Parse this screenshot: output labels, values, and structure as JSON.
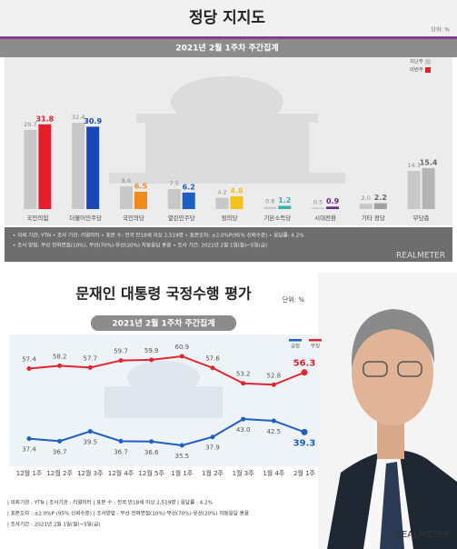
{
  "chart_data": [
    {
      "type": "bar",
      "title": "정당 지지도",
      "subtitle": "2021년 2월 1주차 주간집계",
      "unit": "단위: %",
      "categories": [
        "국민의힘",
        "더불어민주당",
        "국민의당",
        "열린민주당",
        "정의당",
        "기본소득당",
        "시대전환",
        "기타 정당",
        "무당층"
      ],
      "series": [
        {
          "name": "지난주",
          "color": "#c8c8c8",
          "values": [
            29.7,
            32.4,
            8.6,
            7.5,
            4.2,
            0.8,
            0.5,
            2.0,
            14.3
          ],
          "value_labels": [
            "29.7",
            "32.4",
            "8.6",
            "7.5",
            "4.2",
            "0.8",
            "0.5",
            "2.0",
            "14.3"
          ]
        },
        {
          "name": "이번주",
          "color": "#e61e2b",
          "colors": [
            "#e61e2b",
            "#1a47b8",
            "#f08a1c",
            "#1d5fbf",
            "#f3c21b",
            "#3ab0a8",
            "#6b2a8c",
            "#a0a0a0",
            "#b4b4b4"
          ],
          "values": [
            31.8,
            30.9,
            6.5,
            6.2,
            4.8,
            1.2,
            0.9,
            2.2,
            15.4
          ],
          "value_labels": [
            "31.8",
            "30.9",
            "6.5",
            "6.2",
            "4.8",
            "1.2",
            "0.9",
            "2.2",
            "15.4"
          ]
        }
      ],
      "notes": [
        "• 의뢰 기관: YTN • 조사 기관: 리얼미터 • 표본 수: 전국 만18세 이상 2,519명 • 표본오차: ±2.0%P(95% 신뢰수준) • 응답률: 4.2%",
        "• 조사 방법: 무선 전화면접(10%), 무선(70%)·유선(20%) 자동응답 혼용 • 조사 기간: 2021년 2월 1일(월)~5일(금)"
      ],
      "source": "REALMETER"
    },
    {
      "type": "line",
      "title": "문재인 대통령 국정수행 평가",
      "subtitle": "2021년 2월 1주차 주간집계",
      "unit": "단위: %",
      "categories": [
        "12월 1주",
        "12월 2주",
        "12월 3주",
        "12월 4주",
        "12월 5주",
        "1월 1주",
        "1월 2주",
        "1월 3주",
        "1월 4주",
        "2월 1주"
      ],
      "series": [
        {
          "name": "긍정",
          "color": "#1f5fc4",
          "values": [
            37.4,
            36.7,
            39.5,
            36.7,
            36.6,
            35.5,
            37.9,
            43.0,
            42.5,
            39.3
          ],
          "value_labels": [
            "37.4",
            "36.7",
            "39.5",
            "36.7",
            "36.6",
            "35.5",
            "37.9",
            "43.0",
            "42.5",
            "39.3"
          ]
        },
        {
          "name": "부정",
          "color": "#e0262e",
          "values": [
            57.4,
            58.2,
            57.7,
            59.7,
            59.9,
            60.9,
            57.6,
            53.2,
            52.8,
            56.3
          ],
          "value_labels": [
            "57.4",
            "58.2",
            "57.7",
            "59.7",
            "59.9",
            "60.9",
            "57.6",
            "53.2",
            "52.8",
            "56.3"
          ]
        }
      ],
      "notes": [
        "| 의뢰기관 : YTN | 조사기관 : 리얼미터 | 표본 수 : 전국 만18세 이상 2,519명 | 응답률 : 4.2%",
        "| 표본오차 : ±2.0%P (95% 신뢰수준) | 조사방법 : 무선 전화면접(10%)·무선(70%)·유선(20%) 자동응답 혼용",
        "| 조사기간 : 2021년 2월 1일(월)~5일(금)"
      ],
      "source": "REALMETER"
    }
  ]
}
